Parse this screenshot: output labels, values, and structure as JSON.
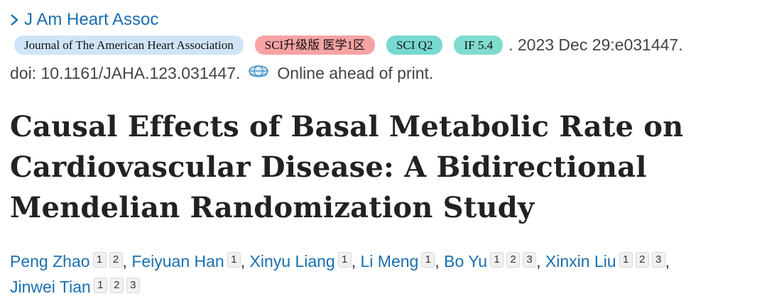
{
  "journal_link": {
    "label": "J Am Heart Assoc"
  },
  "badges": {
    "journal": "Journal of The American Heart Association",
    "sci": "SCI升级版 医学1区",
    "quartile": "SCI Q2",
    "impact": "IF 5.4"
  },
  "citation": {
    "tail": ". 2023 Dec 29:e031447.",
    "doi": "doi: 10.1161/JAHA.123.031447.",
    "status": "Online ahead of print."
  },
  "article": {
    "title": "Causal Effects of Basal Metabolic Rate on Cardiovascular Disease: A Bidirectional Mendelian Randomization Study"
  },
  "authors": [
    {
      "name": "Peng Zhao",
      "affiliations": [
        "1",
        "2"
      ]
    },
    {
      "name": "Feiyuan Han",
      "affiliations": [
        "1"
      ]
    },
    {
      "name": "Xinyu Liang",
      "affiliations": [
        "1"
      ]
    },
    {
      "name": "Li Meng",
      "affiliations": [
        "1"
      ]
    },
    {
      "name": "Bo Yu",
      "affiliations": [
        "1",
        "2",
        "3"
      ]
    },
    {
      "name": "Xinxin Liu",
      "affiliations": [
        "1",
        "2",
        "3"
      ]
    },
    {
      "name": "Jinwei Tian",
      "affiliations": [
        "1",
        "2",
        "3"
      ]
    }
  ],
  "author_separator": ",",
  "colors": {
    "link": "#1a6fb0",
    "journal_badge": "#cfe5f7",
    "sci_badge": "#f7a3a3",
    "q_badge": "#77d9cf"
  }
}
